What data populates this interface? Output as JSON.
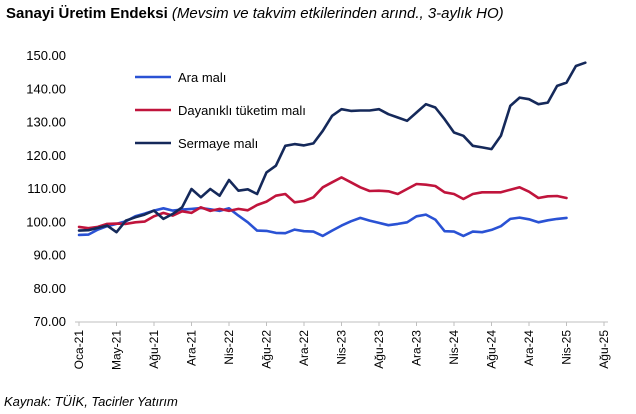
{
  "title": {
    "main": "Sanayi Üretim Endeksi",
    "subtitle": "(Mevsim ve takvim etkilerinden arınd., 3-aylık HO)"
  },
  "source": "Kaynak: TÜİK, Tacirler Yatırım",
  "chart_data": {
    "type": "line",
    "ylim": [
      70,
      150
    ],
    "yticks": [
      "70.00",
      "80.00",
      "90.00",
      "100.00",
      "110.00",
      "120.00",
      "130.00",
      "140.00",
      "150.00"
    ],
    "xtick_labels": [
      "Oca-21",
      "May-21",
      "Ağu-21",
      "Ara-21",
      "Nis-22",
      "Ağu-22",
      "Ara-22",
      "Nis-23",
      "Ağu-23",
      "Ara-23",
      "Nis-24",
      "Ağu-24",
      "Ara-24",
      "Nis-25",
      "Ağu-25"
    ],
    "xtick_index": [
      0,
      4,
      8,
      12,
      16,
      20,
      24,
      28,
      32,
      36,
      40,
      44,
      48,
      52,
      56
    ],
    "grid": false,
    "legend_position": "top-left",
    "series": [
      {
        "name": "Ara malı",
        "color": "#2a52d4",
        "values": [
          96.2,
          96.3,
          97.8,
          98.8,
          99.5,
          100.3,
          101.8,
          102.6,
          103.5,
          104.2,
          103.5,
          103.8,
          104.0,
          104.3,
          103.9,
          103.4,
          104.2,
          102.0,
          100.0,
          97.5,
          97.4,
          96.8,
          96.7,
          97.8,
          97.3,
          97.2,
          95.9,
          97.5,
          99.0,
          100.3,
          101.3,
          100.5,
          99.8,
          99.1,
          99.5,
          100.0,
          101.8,
          102.3,
          100.8,
          97.3,
          97.2,
          95.9,
          97.2,
          97.0,
          97.7,
          98.8,
          101.0,
          101.4,
          100.9,
          100.0,
          100.6,
          101.0,
          101.3
        ]
      },
      {
        "name": "Dayanıklı tüketim malı",
        "color": "#c0143c",
        "values": [
          98.6,
          98.2,
          98.6,
          99.5,
          99.6,
          99.5,
          100.0,
          100.2,
          101.8,
          102.8,
          102.0,
          103.3,
          102.8,
          104.5,
          103.4,
          104.0,
          103.4,
          104.0,
          103.6,
          105.2,
          106.2,
          108.0,
          108.5,
          106.0,
          106.4,
          107.5,
          110.5,
          112.0,
          113.5,
          112.0,
          110.5,
          109.4,
          109.5,
          109.3,
          108.5,
          110.0,
          111.5,
          111.3,
          110.9,
          109.0,
          108.5,
          107.0,
          108.5,
          109.0,
          109.0,
          109.0,
          109.8,
          110.5,
          109.2,
          107.3,
          107.8,
          107.9,
          107.3
        ]
      },
      {
        "name": "Sermaye malı",
        "color": "#15295a",
        "values": [
          97.5,
          97.6,
          98.3,
          99.0,
          97.0,
          100.5,
          101.5,
          102.3,
          103.5,
          101.0,
          102.5,
          104.5,
          110.0,
          107.5,
          110.0,
          108.0,
          112.7,
          109.5,
          109.9,
          108.5,
          115.0,
          117.0,
          123.0,
          123.5,
          123.1,
          123.7,
          127.5,
          132.0,
          134.0,
          133.5,
          133.6,
          133.6,
          134.0,
          132.5,
          131.5,
          130.5,
          133.0,
          135.5,
          134.5,
          131.0,
          127.0,
          126.0,
          123.0,
          122.5,
          122.0,
          126.0,
          135.0,
          137.5,
          137.0,
          135.5,
          136.0,
          141.0,
          142.0,
          147.0,
          148.0
        ]
      }
    ]
  }
}
